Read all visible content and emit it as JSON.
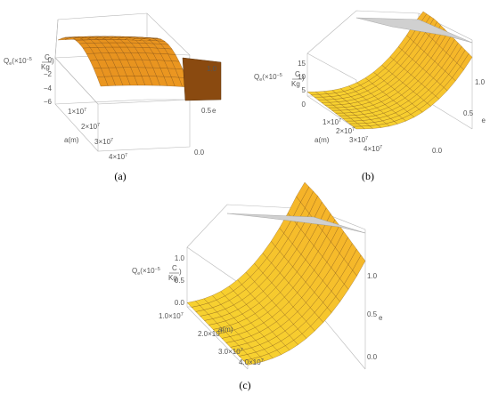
{
  "chart_data": [
    {
      "panel_label": "(a)",
      "type": "surface3d",
      "x_label": "a(m)",
      "y_label": "e",
      "z_label": {
        "prefix": "Q",
        "sub": "e",
        "open": "(×10",
        "exp": "−5",
        "frac_top": "C",
        "frac_bottom": "Kg",
        "close": ")"
      },
      "x_range": [
        5000000,
        45000000
      ],
      "y_range": [
        0,
        1
      ],
      "z_range": [
        -7,
        0.5
      ],
      "x_ticks": [
        "1×10",
        "2×10",
        "3×10",
        "4×10"
      ],
      "x_tick_exp": "7",
      "y_ticks": [
        "0.0",
        "0.5",
        "1.0"
      ],
      "z_ticks": [
        "0",
        "−2",
        "−4",
        "−6"
      ],
      "surface_top_color": "#f6a428",
      "surface_side_color": "#8a4a10"
    },
    {
      "panel_label": "(b)",
      "type": "surface3d",
      "x_label": "a(m)",
      "y_label": "e",
      "z_label": {
        "prefix": "Q",
        "sub": "e",
        "open": "(×10",
        "exp": "−5",
        "frac_top": "C",
        "frac_bottom": "Kg",
        "close": ")"
      },
      "x_range": [
        5000000,
        45000000
      ],
      "y_range": [
        0,
        1
      ],
      "z_range": [
        0,
        18
      ],
      "x_ticks": [
        "1×10",
        "2×10",
        "3×10",
        "4×10"
      ],
      "x_tick_exp": "7",
      "y_ticks": [
        "0.0",
        "0.5",
        "1.0"
      ],
      "z_ticks": [
        "0",
        "5",
        "10",
        "15"
      ],
      "surface_top_color": "#f6d225",
      "surface_side_color": "#f4a325"
    },
    {
      "panel_label": "(c)",
      "type": "surface3d",
      "x_label": "a(m)",
      "y_label": "e",
      "z_label": {
        "prefix": "Q",
        "sub": "e",
        "open": "(×10",
        "exp": "−5",
        "frac_top": "C",
        "frac_bottom": "Kg",
        "close": ")"
      },
      "x_range": [
        5000000,
        45000000
      ],
      "y_range": [
        0,
        1
      ],
      "z_range": [
        0,
        1.2
      ],
      "x_ticks": [
        "1.0×10",
        "2.0×10",
        "3.0×10",
        "4.0×10"
      ],
      "x_tick_exp": "7",
      "y_ticks": [
        "0.0",
        "0.5",
        "1.0"
      ],
      "z_ticks": [
        "0.0",
        "0.5",
        "1.0"
      ],
      "surface_top_color": "#f6d225",
      "surface_side_color": "#f4a325"
    }
  ]
}
